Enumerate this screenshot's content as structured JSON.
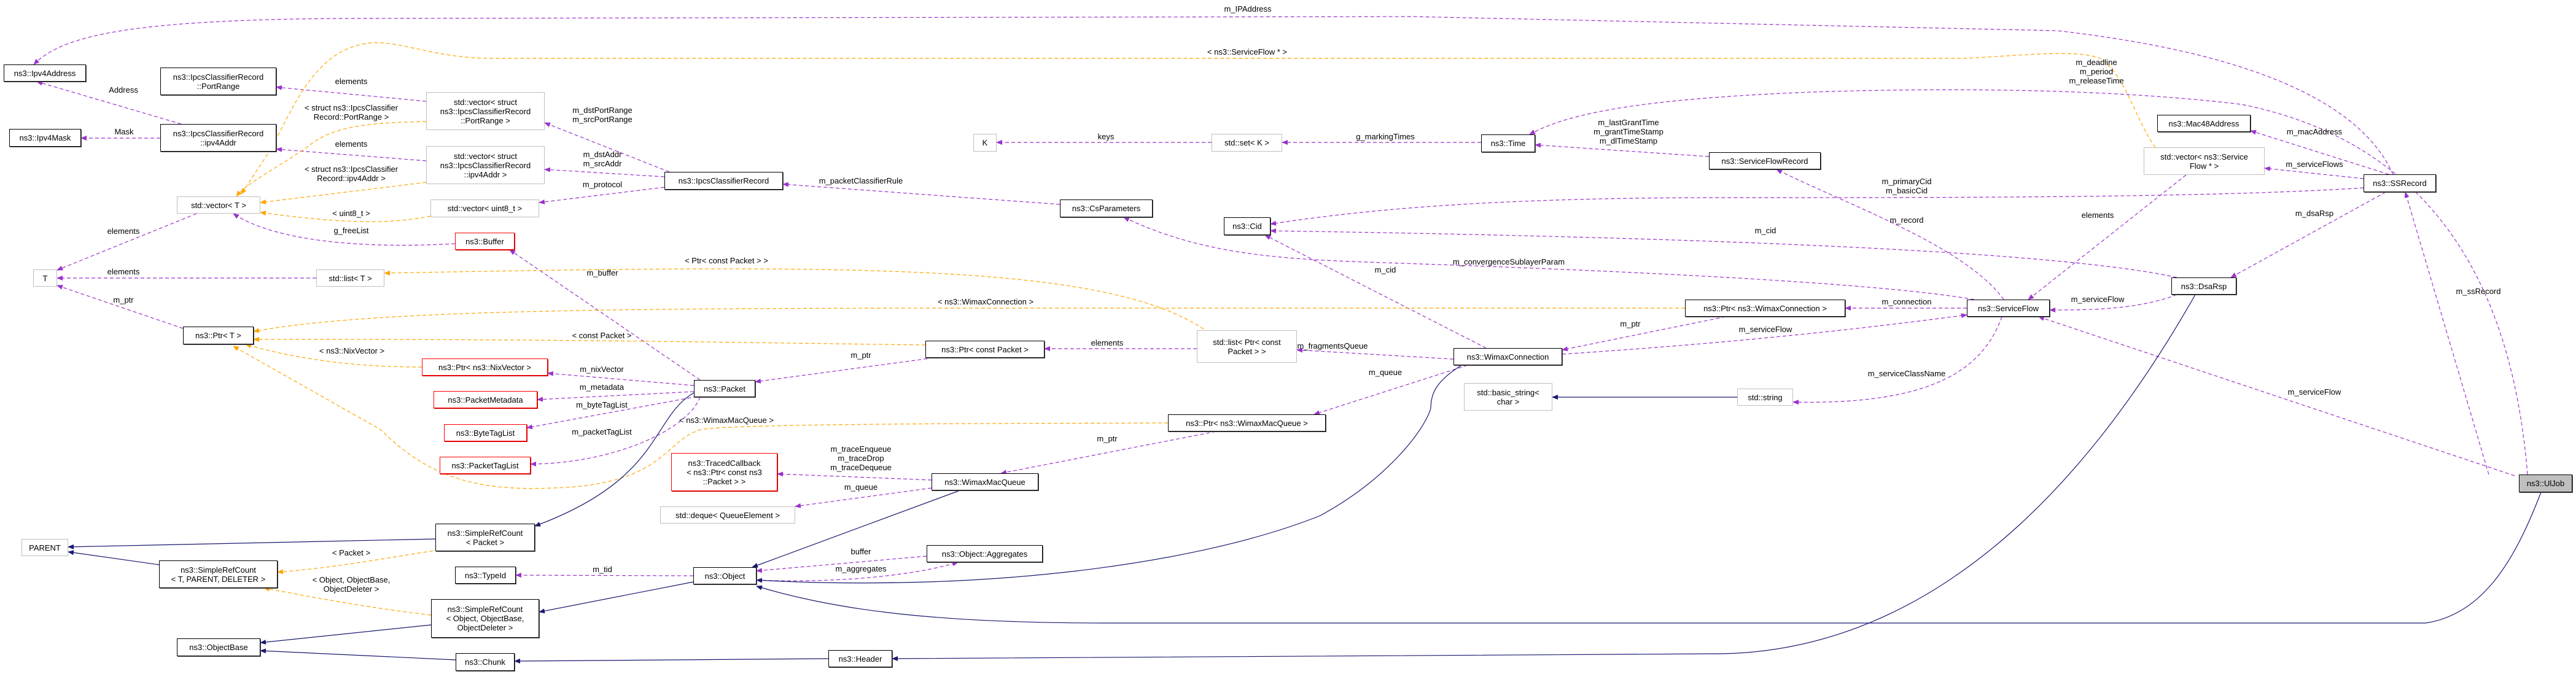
{
  "colors": {
    "member": "#9a32cd",
    "template": "#ffa500",
    "inherit": "#191970",
    "undocumented": "#ff0000",
    "current": "#bfbfbf"
  },
  "nodes": {
    "ipv4address": "ns3::Ipv4Address",
    "portrange": "ns3::IpcsClassifierRecord\n::PortRange",
    "ipv4mask": "ns3::Ipv4Mask",
    "ipv4addr": "ns3::IpcsClassifierRecord\n::ipv4Addr",
    "vec_portrange": "std::vector< struct\n ns3::IpcsClassifierRecord\n::PortRange >",
    "vec_ipv4addr": "std::vector< struct\n ns3::IpcsClassifierRecord\n::ipv4Addr >",
    "vec_t": "std::vector< T >",
    "vec_uint8": "std::vector< uint8_t >",
    "buffer": "ns3::Buffer",
    "t": "T",
    "list_t": "std::list< T >",
    "ptr_t": "ns3::Ptr< T >",
    "ptr_nix": "ns3::Ptr< ns3::NixVector >",
    "metadata": "ns3::PacketMetadata",
    "bytetaglist": "ns3::ByteTagList",
    "packettaglist": "ns3::PacketTagList",
    "packet": "ns3::Packet",
    "parent": "PARENT",
    "src_t": "ns3::SimpleRefCount\n< T, PARENT, DELETER >",
    "src_packet": "ns3::SimpleRefCount\n< Packet >",
    "typeid": "ns3::TypeId",
    "src_object": "ns3::SimpleRefCount\n< Object, ObjectBase,\n ObjectDeleter >",
    "objectbase": "ns3::ObjectBase",
    "chunk": "ns3::Chunk",
    "classifierrecord": "ns3::IpcsClassifierRecord",
    "k": "K",
    "set_k": "std::set< K >",
    "csparameters": "ns3::CsParameters",
    "cid": "ns3::Cid",
    "ptr_const_packet": "ns3::Ptr< const Packet >",
    "list_ptr_packet": "std::list< Ptr< const\n Packet > >",
    "ptr_macqueue": "ns3::Ptr< ns3::WimaxMacQueue >",
    "tracedcallback": "ns3::TracedCallback\n< ns3::Ptr< const ns3\n::Packet > >",
    "macqueue": "ns3::WimaxMacQueue",
    "deque": "std::deque< QueueElement >",
    "object": "ns3::Object",
    "aggregates": "ns3::Object::Aggregates",
    "header": "ns3::Header",
    "time": "ns3::Time",
    "sfrecord": "ns3::ServiceFlowRecord",
    "ptr_connection": "ns3::Ptr< ns3::WimaxConnection >",
    "connection": "ns3::WimaxConnection",
    "basic_string": "std::basic_string<\n char >",
    "string": "std::string",
    "serviceflow": "ns3::ServiceFlow",
    "mac48": "ns3::Mac48Address",
    "vec_sf": "std::vector< ns3::Service\nFlow * >",
    "ssrecord": "ns3::SSRecord",
    "dsarsp": "ns3::DsaRsp",
    "uljob": "ns3::UlJob"
  },
  "edge_labels": {
    "ipaddress": "m_IPAddress",
    "sf_ptr_tmpl": "< ns3::ServiceFlow * >",
    "address": "Address",
    "elements_portrange": "elements",
    "tmpl_portrange": "< struct ns3::IpcsClassifier\nRecord::PortRange >",
    "mask": "Mask",
    "elements_ipv4addr": "elements",
    "tmpl_ipv4addr": "< struct ns3::IpcsClassifier\nRecord::ipv4Addr >",
    "portranges": "m_dstPortRange\nm_srcPortRange",
    "addrs": "m_dstAddr\nm_srcAddr",
    "protocol": "m_protocol",
    "tmpl_uint8": "< uint8_t >",
    "elements_vec": "elements",
    "freelist": "g_freeList",
    "elements_list": "elements",
    "m_buffer": "m_buffer",
    "m_ptr_t": "m_ptr",
    "keys": "keys",
    "classifier_rule": "m_packetClassifierRule",
    "tmpl_ptr_const_packet": "< Ptr< const Packet > >",
    "tmpl_connection": "< ns3::WimaxConnection >",
    "tmpl_const_packet": "< const Packet >",
    "tmpl_nix": "< ns3::NixVector >",
    "nixvector": "m_nixVector",
    "metadata": "m_metadata",
    "bytetaglist": "m_byteTagList",
    "packettaglist": "m_packetTagList",
    "tmpl_macqueue": "< ns3::WimaxMacQueue >",
    "m_ptr_packet": "m_ptr",
    "elements_ptrpacket": "elements",
    "m_ptr_queue": "m_ptr",
    "traces": "m_traceEnqueue\nm_traceDrop\nm_traceDequeue",
    "m_queue_deque": "m_queue",
    "buffer": "buffer",
    "aggregates": "m_aggregates",
    "tmpl_packet": "< Packet >",
    "tmpl_object": "< Object, ObjectBase,\nObjectDeleter >",
    "tid": "m_tid",
    "markingtimes": "g_markingTimes",
    "times": "m_lastGrantTime\nm_grantTimeStamp\nm_dlTimeStamp",
    "cids": "m_primaryCid\nm_basicCid",
    "record": "m_record",
    "cid_dsa": "m_cid",
    "convergence": "m_convergenceSublayerParam",
    "cid_conn": "m_cid",
    "connection": "m_connection",
    "m_ptr_conn": "m_ptr",
    "sf_conn": "m_serviceFlow",
    "fragments": "m_fragmentsQueue",
    "m_queue_conn": "m_queue",
    "classname": "m_serviceClassName",
    "uljob_times": "m_deadline\nm_period\nm_releaseTime",
    "macaddress": "m_macAddress",
    "serviceflows": "m_serviceFlows",
    "elements_sf": "elements",
    "dsarsp": "m_dsaRsp",
    "sf_dsa": "m_serviceFlow",
    "ssrecord": "m_ssRecord",
    "sf_uljob": "m_serviceFlow"
  }
}
